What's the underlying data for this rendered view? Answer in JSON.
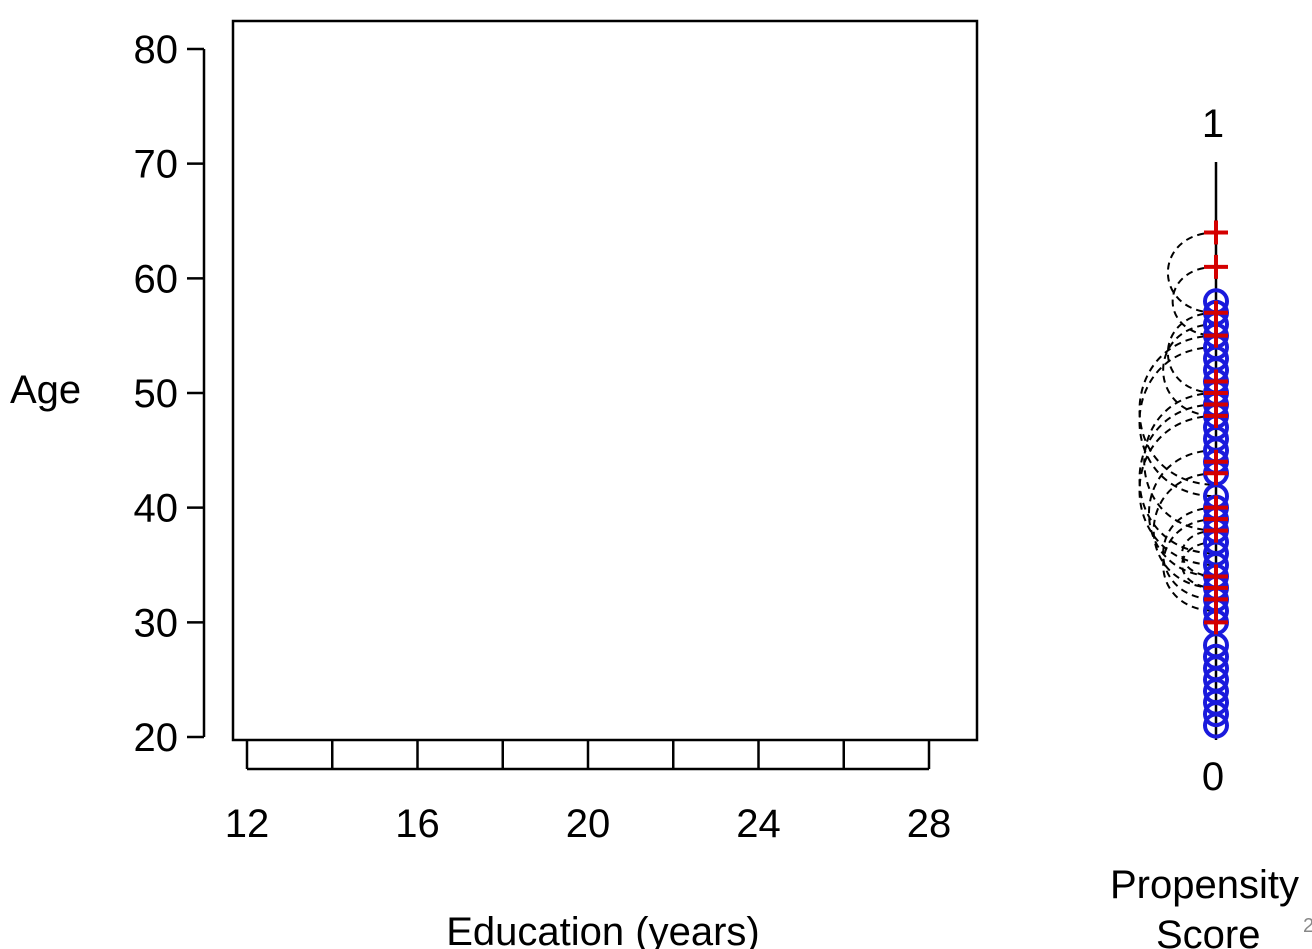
{
  "chart_data": [
    {
      "type": "scatter",
      "title": "",
      "xlabel": "Education (years)",
      "ylabel": "Age",
      "xlim": [
        11.6,
        29.1
      ],
      "ylim": [
        20,
        80
      ],
      "x_ticks": [
        12,
        14,
        16,
        18,
        20,
        22,
        24,
        26,
        28
      ],
      "x_tick_labels": [
        "12",
        "16",
        "20",
        "24",
        "28"
      ],
      "y_ticks": [
        "20",
        "30",
        "40",
        "50",
        "60",
        "70",
        "80"
      ],
      "series": [],
      "grid": false,
      "legend": "none"
    },
    {
      "type": "scatter",
      "title": "",
      "xlabel": "Propensity Score",
      "ylabel": "",
      "ylim": [
        0,
        1
      ],
      "y_tick_labels": [
        "0",
        "1"
      ],
      "marker_range_age": [
        21,
        58
      ],
      "series": [
        {
          "marker": "circle",
          "color": "#1a1adc",
          "values": [
            21,
            22,
            23,
            24,
            25,
            26,
            27,
            28,
            30,
            31,
            32,
            33,
            34,
            35,
            36,
            37,
            38,
            39,
            40,
            41,
            43,
            44,
            45,
            46,
            47,
            48,
            49,
            50,
            51,
            52,
            53,
            54,
            55,
            56,
            57,
            58
          ]
        },
        {
          "marker": "plus",
          "color": "#d40000",
          "values": [
            64,
            61,
            57,
            55,
            51,
            50,
            49,
            48,
            44,
            43,
            40,
            39,
            38,
            34,
            33,
            32,
            30
          ]
        }
      ],
      "match_arcs": [
        [
          64,
          57
        ],
        [
          61,
          55
        ],
        [
          57,
          50
        ],
        [
          56,
          48
        ],
        [
          55,
          42
        ],
        [
          54,
          41
        ],
        [
          50,
          38
        ],
        [
          49,
          36
        ],
        [
          48,
          35
        ],
        [
          45,
          34
        ],
        [
          43,
          33
        ],
        [
          40,
          32
        ],
        [
          39,
          31
        ],
        [
          38,
          34
        ],
        [
          37,
          33
        ]
      ],
      "arc_style": "dashed",
      "arc_color": "#000000"
    }
  ],
  "corner_text": "2"
}
